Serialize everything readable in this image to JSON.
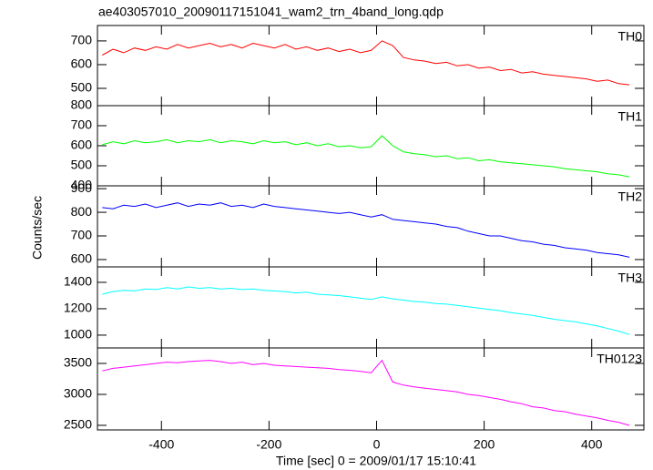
{
  "chart_data": {
    "type": "line",
    "title": "ae403057010_20090117151041_wam2_trn_4band_long.qdp",
    "xlabel": "Time [sec] 0 = 2009/01/17 15:10:41",
    "ylabel": "Counts/sec",
    "xlim": [
      -519,
      497
    ],
    "xticks": [
      -400,
      -200,
      0,
      200,
      400
    ],
    "x": [
      -510,
      -490,
      -470,
      -450,
      -430,
      -410,
      -390,
      -370,
      -350,
      -330,
      -310,
      -290,
      -270,
      -250,
      -230,
      -210,
      -190,
      -170,
      -150,
      -130,
      -110,
      -90,
      -70,
      -50,
      -30,
      -10,
      10,
      30,
      50,
      70,
      90,
      110,
      130,
      150,
      170,
      190,
      210,
      230,
      250,
      270,
      290,
      310,
      330,
      350,
      370,
      390,
      410,
      430,
      450,
      470
    ],
    "panels": [
      {
        "name": "TH0",
        "color": "#ff0000",
        "ylim": [
          427,
          765
        ],
        "yticks": [
          500,
          600,
          700
        ],
        "values": [
          640,
          665,
          650,
          670,
          660,
          675,
          665,
          685,
          670,
          680,
          690,
          675,
          685,
          670,
          690,
          680,
          670,
          685,
          665,
          675,
          660,
          670,
          655,
          665,
          650,
          660,
          700,
          680,
          630,
          620,
          615,
          605,
          610,
          595,
          600,
          585,
          590,
          575,
          580,
          565,
          570,
          560,
          555,
          550,
          545,
          540,
          530,
          535,
          520,
          515
        ]
      },
      {
        "name": "TH1",
        "color": "#00ff00",
        "ylim": [
          400,
          800
        ],
        "yticks": [
          400,
          500,
          600,
          700,
          800
        ],
        "values": [
          605,
          620,
          610,
          625,
          615,
          620,
          630,
          615,
          625,
          620,
          630,
          615,
          625,
          620,
          610,
          625,
          615,
          620,
          605,
          615,
          600,
          610,
          595,
          600,
          590,
          595,
          650,
          600,
          570,
          560,
          555,
          545,
          550,
          535,
          540,
          525,
          530,
          520,
          515,
          510,
          505,
          500,
          495,
          485,
          480,
          475,
          470,
          460,
          455,
          445
        ]
      },
      {
        "name": "TH2",
        "color": "#0000ff",
        "ylim": [
          569,
          912
        ],
        "yticks": [
          600,
          700,
          800,
          900
        ],
        "values": [
          820,
          815,
          830,
          825,
          835,
          820,
          830,
          840,
          825,
          835,
          830,
          840,
          825,
          830,
          820,
          835,
          825,
          820,
          815,
          810,
          805,
          800,
          795,
          800,
          790,
          780,
          790,
          770,
          765,
          760,
          755,
          750,
          740,
          735,
          720,
          710,
          700,
          700,
          690,
          680,
          675,
          665,
          660,
          650,
          645,
          640,
          630,
          625,
          620,
          610
        ]
      },
      {
        "name": "TH3",
        "color": "#00ffff",
        "ylim": [
          903,
          1517
        ],
        "yticks": [
          1000,
          1200,
          1400
        ],
        "values": [
          1310,
          1330,
          1340,
          1335,
          1350,
          1345,
          1360,
          1350,
          1365,
          1355,
          1360,
          1350,
          1355,
          1345,
          1350,
          1340,
          1335,
          1330,
          1320,
          1325,
          1310,
          1305,
          1300,
          1290,
          1280,
          1270,
          1290,
          1275,
          1265,
          1255,
          1250,
          1240,
          1235,
          1225,
          1215,
          1205,
          1195,
          1185,
          1170,
          1160,
          1150,
          1135,
          1120,
          1110,
          1100,
          1085,
          1070,
          1050,
          1030,
          1005
        ]
      },
      {
        "name": "TH0123",
        "color": "#ff00ff",
        "ylim": [
          2426,
          3750
        ],
        "yticks": [
          2500,
          3000,
          3500
        ],
        "values": [
          3380,
          3420,
          3440,
          3460,
          3480,
          3500,
          3520,
          3510,
          3530,
          3540,
          3550,
          3530,
          3500,
          3520,
          3480,
          3500,
          3470,
          3460,
          3450,
          3440,
          3430,
          3420,
          3400,
          3390,
          3370,
          3350,
          3550,
          3200,
          3150,
          3120,
          3100,
          3080,
          3060,
          3040,
          3000,
          2980,
          2950,
          2920,
          2880,
          2850,
          2800,
          2780,
          2740,
          2720,
          2680,
          2650,
          2620,
          2580,
          2550,
          2500
        ]
      }
    ]
  }
}
